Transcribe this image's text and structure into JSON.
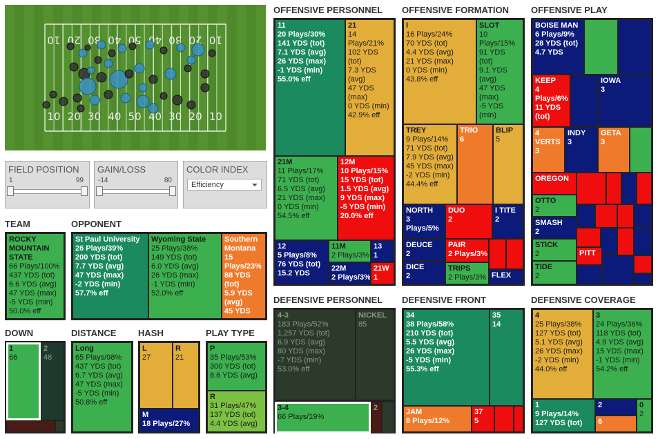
{
  "field": {
    "top_yard_labels": [
      "10",
      "20",
      "30",
      "40",
      "50",
      "40",
      "30",
      "20",
      "10"
    ],
    "bottom_yard_labels": [
      "10",
      "20",
      "30",
      "40",
      "50",
      "40",
      "30",
      "20",
      "10"
    ]
  },
  "filters": [
    {
      "title": "FIELD POSITION",
      "min": 1,
      "max": 99
    },
    {
      "title": "GAIN/LOSS",
      "min": -14,
      "max": 80
    }
  ],
  "color_index": {
    "title": "COLOR INDEX",
    "value": "Efficiency"
  },
  "panels": [
    {
      "title": "TEAM",
      "cells": [
        {
          "label": "ROCKY MOUNTAIN STATE",
          "color": "#3cb04e",
          "lines": [
            "66 Plays/100%",
            "437 YDS (tot)",
            "6.6 YDS (avg)",
            "47 YDS (max)",
            "-5 YDS (min)",
            "50.0% eff"
          ]
        }
      ]
    },
    {
      "title": "OPPONENT",
      "cells": [
        {
          "label": "St Paul University",
          "color": "#1b8a5f",
          "lines": [
            "26 Plays/39%",
            "200 YDS (tot)",
            "7.7 YDS (avg)",
            "47 YDS (max)",
            "-2 YDS (min)",
            "57.7% eff"
          ]
        },
        {
          "label": "Wyoming State",
          "color": "#3cb04e",
          "lines": [
            "25 Plays/38%",
            "149 YDS (tot)",
            "6.0 YDS (avg)",
            "26 YDS (max)",
            "-1 YDS (min)",
            "52.0% eff"
          ]
        },
        {
          "label": "Southern Montana",
          "color": "#f07a2b",
          "lines": [
            "15",
            "Plays/23%",
            "88 YDS",
            "(tot)",
            "5.9 YDS",
            "(avg)",
            "45 YDS"
          ]
        }
      ]
    },
    {
      "title": "DOWN",
      "cells": [
        {
          "label": "1",
          "color": "#3cb04e",
          "selected": true,
          "lines": [
            "66"
          ]
        },
        {
          "label": "2",
          "color": "#1e3a2e",
          "lines": [
            "48"
          ]
        },
        {
          "color": "#4a1a16"
        },
        {
          "color": "#2b3a2a"
        }
      ]
    },
    {
      "title": "DISTANCE",
      "cells": [
        {
          "label": "Long",
          "color": "#3cb04e",
          "lines": [
            "65 Plays/98%",
            "437 YDS (tot)",
            "6.7 YDS (avg)",
            "47 YDS (max)",
            "-5 YDS (min)",
            "50.8% eff"
          ]
        }
      ]
    },
    {
      "title": "HASH",
      "cells": [
        {
          "label": "L",
          "color": "#e3ad3a",
          "lines": [
            "27"
          ]
        },
        {
          "label": "R",
          "color": "#e3ad3a",
          "lines": [
            "21"
          ]
        },
        {
          "label": "M",
          "color": "#0c1a7a",
          "lines": [
            "18 Plays/27%"
          ]
        }
      ]
    },
    {
      "title": "PLAY TYPE",
      "cells": [
        {
          "label": "P",
          "color": "#3cb04e",
          "lines": [
            "35 Plays/53%",
            "300 YDS (tot)",
            "8.6 YDS (avg)"
          ]
        },
        {
          "label": "R",
          "color": "#7cc142",
          "lines": [
            "31 Plays/47%",
            "137 YDS (tot)",
            "4.4 YDS (avg)"
          ]
        }
      ]
    },
    {
      "title": "OFFENSIVE PERSONNEL",
      "cells": [
        {
          "label": "11",
          "color": "#1b8a5f",
          "lines": [
            "20 Plays/30%",
            "141 YDS (tot)",
            "7.1 YDS (avg)",
            "26 YDS (max)",
            "-1 YDS (min)",
            "55.0% eff"
          ]
        },
        {
          "label": "21",
          "color": "#e3ad3a",
          "lines": [
            "14",
            "Plays/21%",
            "102 YDS",
            "(tot)",
            "7.3 YDS",
            "(avg)",
            "47 YDS",
            "(max)",
            "0 YDS (min)",
            "42.9% eff"
          ]
        },
        {
          "label": "21M",
          "color": "#3cb04e",
          "lines": [
            "11 Plays/17%",
            "71 YDS (tot)",
            "6.5 YDS (avg)",
            "21 YDS (max)",
            "0 YDS (min)",
            "54.5% eff"
          ]
        },
        {
          "label": "12M",
          "color": "#f00d0d",
          "lines": [
            "10 Plays/15%",
            "15 YDS (tot)",
            "1.5 YDS (avg)",
            "9 YDS (max)",
            "-5 YDS (min)",
            "20.0% eff"
          ]
        },
        {
          "label": "12",
          "color": "#0c1a7a",
          "lines": [
            "5 Plays/8%",
            "76 YDS (tot)",
            "15.2 YDS"
          ]
        },
        {
          "label": "11M",
          "color": "#3cb04e",
          "lines": [
            "2 Plays/3%"
          ]
        },
        {
          "label": "22M",
          "color": "#0c1a7a",
          "lines": [
            "2 Plays/3%"
          ]
        },
        {
          "label": "13",
          "color": "#0c1a7a",
          "lines": [
            "1"
          ]
        },
        {
          "label": "21W",
          "color": "#f00d0d",
          "lines": [
            "1"
          ]
        }
      ]
    },
    {
      "title": "OFFENSIVE FORMATION",
      "cells": [
        {
          "label": "I",
          "color": "#e3ad3a",
          "lines": [
            "16 Plays/24%",
            "70 YDS (tot)",
            "4.4 YDS (avg)",
            "21 YDS (max)",
            "0 YDS (min)",
            "43.8% eff"
          ]
        },
        {
          "label": "SLOT",
          "color": "#3cb04e",
          "lines": [
            "10",
            "Plays/15%",
            "91 YDS",
            "(tot)",
            "9.1 YDS",
            "(avg)",
            "47 YDS",
            "(max)",
            "-5 YDS",
            "(min)"
          ]
        },
        {
          "label": "TREY",
          "color": "#e3ad3a",
          "lines": [
            "9 Plays/14%",
            "71 YDS (tot)",
            "7.9 YDS (avg)",
            "45 YDS (max)",
            "-2 YDS (min)",
            "44.4% eff"
          ]
        },
        {
          "label": "TRIO",
          "color": "#f07a2b",
          "lines": [
            "6"
          ]
        },
        {
          "label": "BLIP",
          "color": "#e3ad3a",
          "lines": [
            "5"
          ]
        },
        {
          "label": "NORTH",
          "color": "#0c1a7a",
          "lines": [
            "3",
            "Plays/5%"
          ]
        },
        {
          "label": "DUO",
          "color": "#f00d0d",
          "lines": [
            "2"
          ]
        },
        {
          "label": "I TITE",
          "color": "#0c1a7a",
          "lines": [
            "2"
          ]
        },
        {
          "label": "DEUCE",
          "color": "#0c1a7a",
          "lines": [
            "2"
          ]
        },
        {
          "label": "DICE",
          "color": "#0c1a7a",
          "lines": [
            "2"
          ]
        },
        {
          "label": "PAIR",
          "color": "#f00d0d",
          "lines": [
            "2 Plays/3%"
          ]
        },
        {
          "label": "TRIPS",
          "color": "#3cb04e",
          "lines": [
            "2 Plays/3%"
          ]
        },
        {
          "color": "#f00d0d"
        },
        {
          "color": "#f00d0d"
        },
        {
          "label": "FLEX",
          "color": "#0c1a7a"
        }
      ]
    },
    {
      "title": "OFFENSIVE PLAY",
      "cells": [
        {
          "label": "BOISE MAN",
          "color": "#0c1a7a",
          "lines": [
            "6 Plays/9%",
            "28 YDS (tot)",
            "4.7 YDS"
          ]
        },
        {
          "color": "#3cb04e"
        },
        {
          "color": "#0c1a7a"
        },
        {
          "label": "KEEP",
          "color": "#f00d0d",
          "lines": [
            "4",
            "Plays/6%",
            "11 YDS",
            "(tot)"
          ]
        },
        {
          "color": "#0c1a7a"
        },
        {
          "label": "IOWA",
          "color": "#0c1a7a",
          "lines": [
            "3"
          ]
        },
        {
          "label": "4 VERTS",
          "color": "#f07a2b",
          "lines": [
            "3"
          ]
        },
        {
          "label": "INDY",
          "color": "#0c1a7a",
          "lines": [
            "3"
          ]
        },
        {
          "label": "GETA",
          "color": "#f07a2b",
          "lines": [
            "3"
          ]
        },
        {
          "color": "#3cb04e"
        },
        {
          "label": "OREGON",
          "color": "#f00d0d"
        },
        {
          "color": "#f00d0d"
        },
        {
          "color": "#f00d0d"
        },
        {
          "color": "#0c1a7a"
        },
        {
          "color": "#f00d0d"
        },
        {
          "label": "OTTO",
          "color": "#3cb04e",
          "lines": [
            "2"
          ]
        },
        {
          "label": "SMASH",
          "color": "#0c1a7a",
          "lines": [
            "2"
          ]
        },
        {
          "color": "#0c1a7a"
        },
        {
          "color": "#f00d0d"
        },
        {
          "color": "#f00d0d"
        },
        {
          "color": "#0c1a7a"
        },
        {
          "label": "STICK",
          "color": "#3cb04e",
          "lines": [
            "2"
          ]
        },
        {
          "color": "#f00d0d"
        },
        {
          "color": "#0c1a7a"
        },
        {
          "color": "#f00d0d"
        },
        {
          "color": "#0c1a7a"
        },
        {
          "label": "PITT",
          "color": "#f00d0d"
        },
        {
          "label": "TIDE",
          "color": "#3cb04e",
          "lines": [
            "2"
          ]
        },
        {
          "color": "#0c1a7a"
        },
        {
          "color": "#0c1a7a"
        },
        {
          "color": "#f00d0d"
        },
        {
          "color": "#0c1a7a"
        }
      ]
    },
    {
      "title": "DEFENSIVE PERSONNEL",
      "cells": [
        {
          "label": "4-3",
          "color": "#2b3a2a",
          "lines": [
            "183 Plays/52%",
            "1,257 YDS (tot)",
            "6.9 YDS (avg)",
            "80 YDS (max)",
            "-7 YDS (min)",
            "53.0% eff"
          ]
        },
        {
          "label": "NICKEL",
          "color": "#2b3a2a",
          "lines": [
            "85"
          ]
        },
        {
          "label": "3-4",
          "color": "#3cb04e",
          "selected": true,
          "lines": [
            "66 Plays/19%"
          ]
        },
        {
          "label": "2",
          "color": "#4a1a16"
        },
        {
          "color": "#2b3a2a"
        }
      ]
    },
    {
      "title": "DEFENSIVE FRONT",
      "cells": [
        {
          "label": "34",
          "color": "#1b8a5f",
          "lines": [
            "38 Plays/58%",
            "210 YDS (tot)",
            "5.5 YDS (avg)",
            "26 YDS (max)",
            "-5 YDS (min)",
            "55.3% eff"
          ]
        },
        {
          "label": "35",
          "color": "#1b8a5f",
          "lines": [
            "14"
          ]
        },
        {
          "label": "JAM",
          "color": "#f07a2b",
          "lines": [
            "8 Plays/12%"
          ]
        },
        {
          "label": "37",
          "color": "#f00d0d",
          "lines": [
            "5"
          ]
        },
        {
          "color": "#f00d0d"
        },
        {
          "color": "#f00d0d"
        }
      ]
    },
    {
      "title": "DEFENSIVE COVERAGE",
      "cells": [
        {
          "label": "4",
          "color": "#e3ad3a",
          "lines": [
            "25 Plays/38%",
            "127 YDS (tot)",
            "5.1 YDS (avg)",
            "26 YDS (max)",
            "-2 YDS (min)",
            "44.0% eff"
          ]
        },
        {
          "label": "3",
          "color": "#3cb04e",
          "lines": [
            "24 Plays/36%",
            "118 YDS (tot)",
            "4.9 YDS (avg)",
            "15 YDS (max)",
            "-1 YDS (min)",
            "54.2% eff"
          ]
        },
        {
          "label": "1",
          "color": "#1b8a5f",
          "lines": [
            "9 Plays/14%",
            "127 YDS (tot)"
          ]
        },
        {
          "label": "2",
          "color": "#0c1a7a"
        },
        {
          "label": "6",
          "color": "#f07a2b"
        },
        {
          "label": "0",
          "color": "#3cb04e",
          "lines": [
            "2"
          ]
        }
      ]
    }
  ]
}
